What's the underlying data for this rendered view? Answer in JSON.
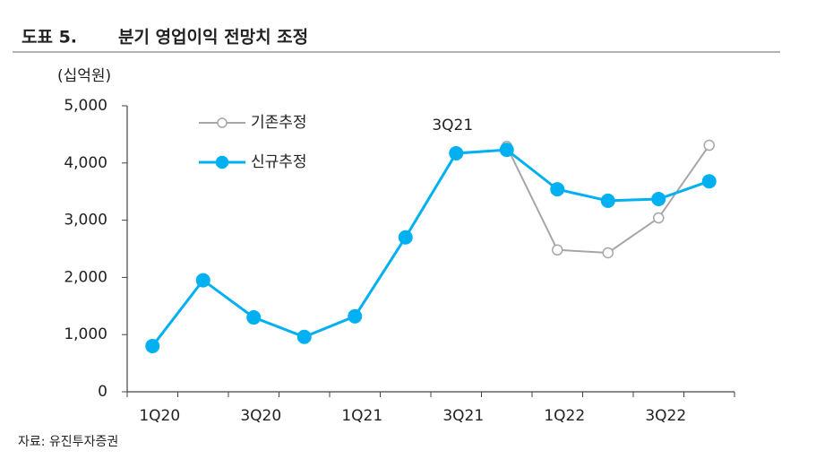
{
  "header": {
    "label": "도표 5.",
    "title": "분기 영업이익 전망치 조정"
  },
  "source": "자료: 유진투자증권",
  "chart_data": {
    "type": "line",
    "y_axis_label": "(십억원)",
    "annotation": "3Q21",
    "categories": [
      "1Q20",
      null,
      "3Q20",
      null,
      "1Q21",
      null,
      "3Q21",
      null,
      "1Q22",
      null,
      "3Q22",
      null
    ],
    "series": [
      {
        "name": "기존추정",
        "color": "#a6a6a6",
        "marker": "open",
        "values": [
          null,
          null,
          null,
          null,
          null,
          null,
          null,
          4290,
          2480,
          2430,
          3040,
          4310
        ]
      },
      {
        "name": "신규추정",
        "color": "#00b0f0",
        "marker": "filled",
        "values": [
          800,
          1950,
          1300,
          960,
          1320,
          2700,
          4170,
          4230,
          3540,
          3340,
          3370,
          3680
        ]
      }
    ],
    "ylim": [
      0,
      5000
    ],
    "yticks": [
      0,
      {
        "value": 1000,
        "label": "1,000"
      },
      {
        "value": 2000,
        "label": "2,000"
      },
      {
        "value": 3000,
        "label": "3,000"
      },
      {
        "value": 4000,
        "label": "4,000"
      },
      {
        "value": 5000,
        "label": "5,000"
      }
    ],
    "grid": false
  }
}
